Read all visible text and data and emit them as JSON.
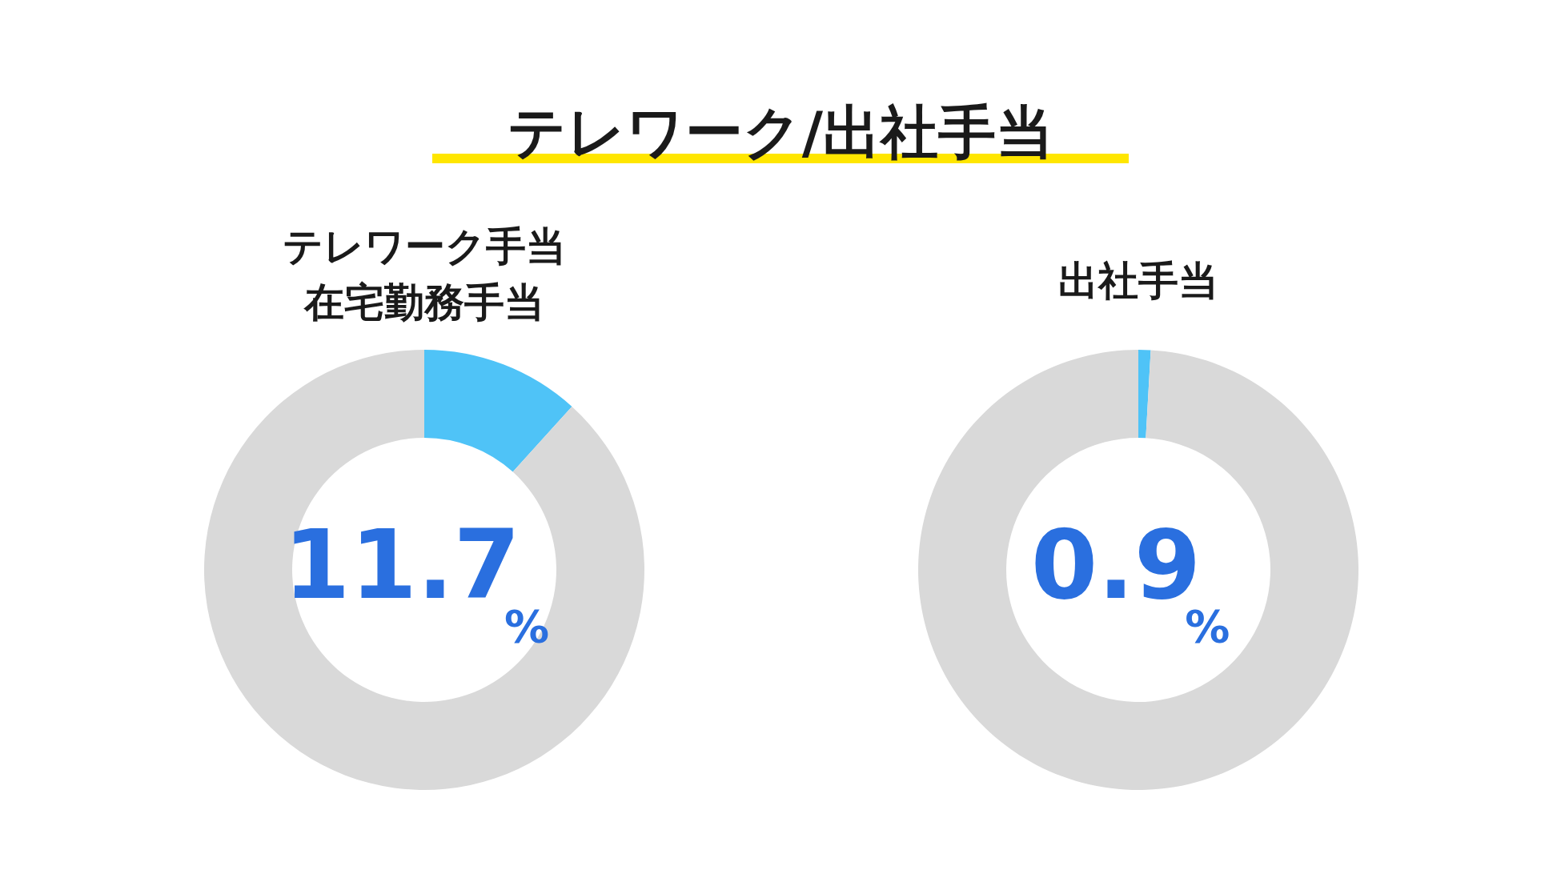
{
  "chart_data": [
    {
      "type": "other",
      "title": "テレワーク/出社手当"
    },
    {
      "type": "donut",
      "title": "テレワーク手当",
      "subtitle": "在宅勤務手当",
      "categories": [
        null,
        null
      ],
      "values": [
        11.7,
        88.3
      ],
      "colors": [
        "#4fc3f7",
        "#d9d9d9"
      ],
      "annotations": [
        "11.7%"
      ]
    },
    {
      "type": "donut",
      "title": "出社手当",
      "categories": [
        null,
        null
      ],
      "values": [
        0.9,
        99.1
      ],
      "colors": [
        "#4fc3f7",
        "#d9d9d9"
      ],
      "annotations": [
        "0.9%"
      ]
    }
  ]
}
